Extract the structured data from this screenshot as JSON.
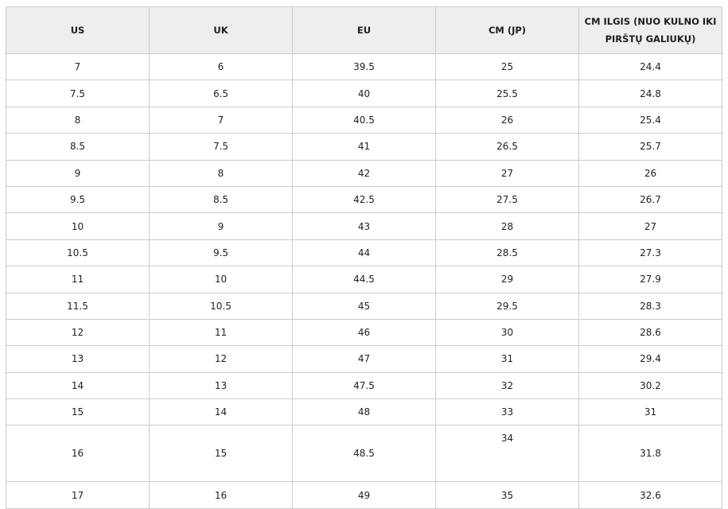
{
  "headers": [
    "US",
    "UK",
    "EU",
    "CM (JP)",
    "CM ILGIS (NUO KULNO IKI PIRŠTŲ GALIUKŲ)"
  ],
  "rows": [
    [
      "7",
      "6",
      "39.5",
      "25",
      "24.4"
    ],
    [
      "7.5",
      "6.5",
      "40",
      "25.5",
      "24.8"
    ],
    [
      "8",
      "7",
      "40.5",
      "26",
      "25.4"
    ],
    [
      "8.5",
      "7.5",
      "41",
      "26.5",
      "25.7"
    ],
    [
      "9",
      "8",
      "42",
      "27",
      "26"
    ],
    [
      "9.5",
      "8.5",
      "42.5",
      "27.5",
      "26.7"
    ],
    [
      "10",
      "9",
      "43",
      "28",
      "27"
    ],
    [
      "10.5",
      "9.5",
      "44",
      "28.5",
      "27.3"
    ],
    [
      "11",
      "10",
      "44.5",
      "29",
      "27.9"
    ],
    [
      "11.5",
      "10.5",
      "45",
      "29.5",
      "28.3"
    ],
    [
      "12",
      "11",
      "46",
      "30",
      "28.6"
    ],
    [
      "13",
      "12",
      "47",
      "31",
      "29.4"
    ],
    [
      "14",
      "13",
      "47.5",
      "32",
      "30.2"
    ],
    [
      "15",
      "14",
      "48",
      "33",
      "31"
    ],
    [
      "16",
      "15",
      "48.5",
      "34",
      "31.8"
    ],
    [
      "17",
      "16",
      "49",
      "35",
      "32.6"
    ]
  ]
}
